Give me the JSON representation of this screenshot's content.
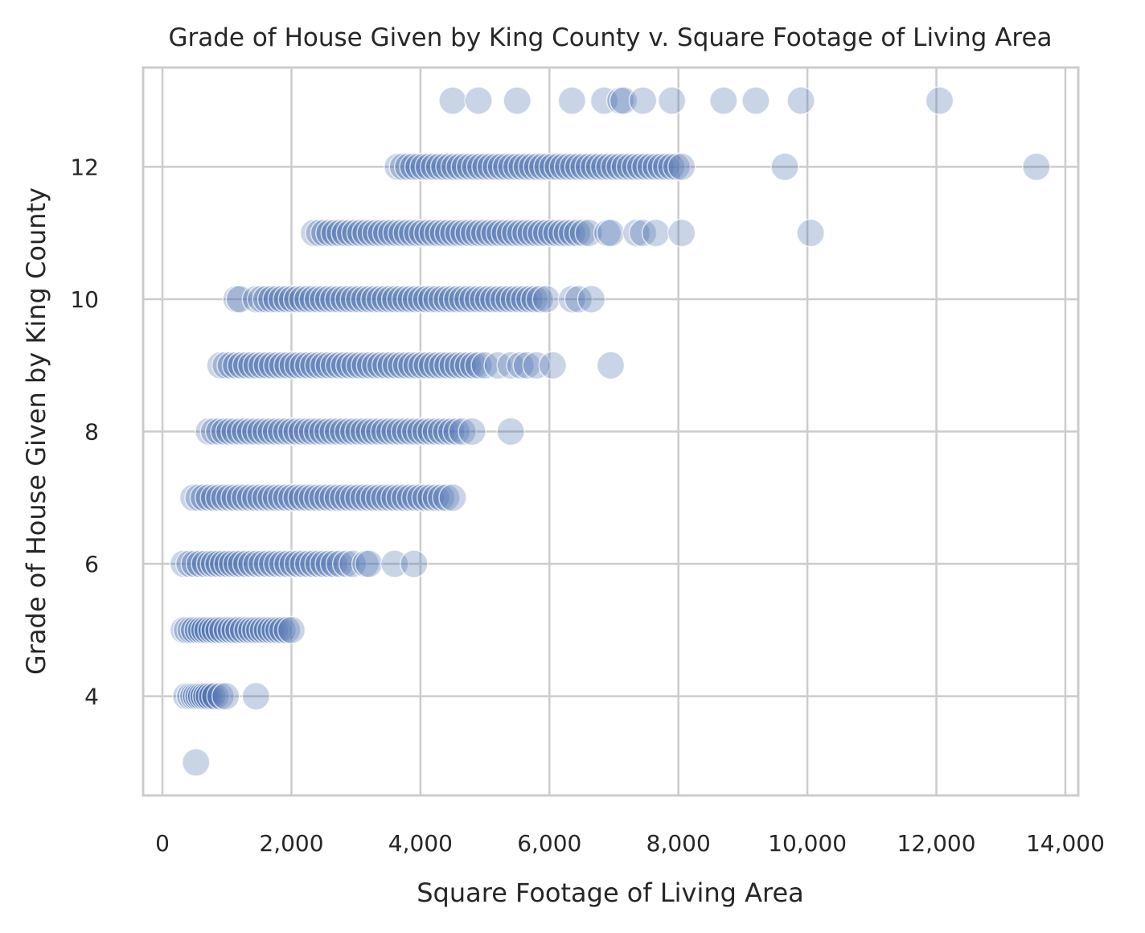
{
  "chart_data": {
    "type": "scatter",
    "title": "Grade of House Given by King County v. Square Footage of Living Area",
    "xlabel": "Square Footage of Living Area",
    "ylabel": "Grade of House Given by King County",
    "xlim": [
      -300,
      14200
    ],
    "ylim": [
      2.5,
      13.5
    ],
    "xticks": [
      0,
      2000,
      4000,
      6000,
      8000,
      10000,
      12000,
      14000
    ],
    "xtick_labels": [
      "0",
      "2,000",
      "4,000",
      "6,000",
      "8,000",
      "10,000",
      "12,000",
      "14,000"
    ],
    "yticks": [
      4,
      6,
      8,
      10,
      12
    ],
    "ytick_labels": [
      "4",
      "6",
      "8",
      "10",
      "12"
    ],
    "grid": true,
    "legend": "none",
    "marker_color": "#4c72b0",
    "marker_alpha": 0.3,
    "points": [
      {
        "grade": 3,
        "sqft": [
          520
        ]
      },
      {
        "grade": 4,
        "sqft": [
          370,
          430,
          480,
          520,
          560,
          600,
          640,
          680,
          720,
          770,
          820,
          900,
          980,
          1450
        ]
      },
      {
        "grade": 5,
        "sqft": [
          330,
          380,
          440,
          490,
          550,
          600,
          650,
          700,
          760,
          810,
          870,
          930,
          1000,
          1060,
          1120,
          1180,
          1250,
          1320,
          1380,
          1440,
          1500,
          1560,
          1620,
          1680,
          1740,
          1800,
          1860,
          1930,
          2000
        ]
      },
      {
        "grade": 6,
        "sqft": [
          330,
          420,
          500,
          580,
          660,
          740,
          800,
          870,
          940,
          1010,
          1080,
          1150,
          1220,
          1300,
          1380,
          1460,
          1540,
          1620,
          1700,
          1780,
          1860,
          1940,
          2020,
          2100,
          2180,
          2260,
          2340,
          2420,
          2500,
          2580,
          2660,
          2750,
          2850,
          2950,
          3150,
          3200,
          3600,
          3900
        ]
      },
      {
        "grade": 7,
        "sqft": [
          480,
          560,
          640,
          720,
          800,
          880,
          960,
          1040,
          1120,
          1200,
          1280,
          1360,
          1440,
          1520,
          1600,
          1680,
          1760,
          1840,
          1920,
          2000,
          2080,
          2160,
          2240,
          2320,
          2400,
          2480,
          2560,
          2640,
          2720,
          2800,
          2880,
          2960,
          3040,
          3120,
          3200,
          3280,
          3360,
          3440,
          3520,
          3600,
          3680,
          3760,
          3840,
          3920,
          4000,
          4080,
          4160,
          4240,
          4320,
          4400,
          4500
        ]
      },
      {
        "grade": 8,
        "sqft": [
          720,
          800,
          880,
          960,
          1040,
          1120,
          1200,
          1280,
          1360,
          1440,
          1520,
          1600,
          1680,
          1760,
          1840,
          1920,
          2000,
          2080,
          2160,
          2240,
          2320,
          2400,
          2480,
          2560,
          2640,
          2720,
          2800,
          2880,
          2960,
          3040,
          3120,
          3200,
          3280,
          3360,
          3440,
          3520,
          3600,
          3680,
          3760,
          3840,
          3920,
          4000,
          4080,
          4160,
          4240,
          4320,
          4400,
          4480,
          4560,
          4650,
          4800,
          5400
        ]
      },
      {
        "grade": 9,
        "sqft": [
          900,
          980,
          1060,
          1140,
          1220,
          1300,
          1380,
          1460,
          1540,
          1620,
          1700,
          1780,
          1860,
          1940,
          2020,
          2100,
          2180,
          2260,
          2340,
          2420,
          2500,
          2580,
          2660,
          2740,
          2820,
          2900,
          2980,
          3060,
          3140,
          3220,
          3300,
          3380,
          3460,
          3540,
          3620,
          3700,
          3780,
          3860,
          3940,
          4020,
          4100,
          4180,
          4260,
          4340,
          4420,
          4500,
          4580,
          4660,
          4740,
          4820,
          4900,
          5000,
          5200,
          5400,
          5550,
          5650,
          5800,
          6050,
          6950
        ]
      },
      {
        "grade": 10,
        "sqft": [
          1150,
          1200,
          1450,
          1530,
          1610,
          1690,
          1770,
          1850,
          1930,
          2010,
          2090,
          2170,
          2250,
          2330,
          2410,
          2490,
          2570,
          2650,
          2730,
          2810,
          2890,
          2970,
          3050,
          3130,
          3210,
          3290,
          3370,
          3450,
          3530,
          3610,
          3690,
          3770,
          3850,
          3930,
          4010,
          4090,
          4170,
          4250,
          4330,
          4410,
          4490,
          4570,
          4650,
          4730,
          4810,
          4890,
          4970,
          5050,
          5130,
          5210,
          5290,
          5370,
          5450,
          5530,
          5610,
          5690,
          5770,
          5850,
          5950,
          6350,
          6450,
          6650
        ]
      },
      {
        "grade": 11,
        "sqft": [
          2350,
          2430,
          2510,
          2590,
          2670,
          2750,
          2830,
          2910,
          2990,
          3070,
          3150,
          3230,
          3310,
          3390,
          3470,
          3550,
          3630,
          3710,
          3790,
          3870,
          3950,
          4030,
          4110,
          4190,
          4270,
          4350,
          4430,
          4510,
          4590,
          4670,
          4750,
          4830,
          4910,
          4990,
          5070,
          5150,
          5230,
          5310,
          5390,
          5470,
          5550,
          5630,
          5710,
          5790,
          5870,
          5950,
          6030,
          6110,
          6190,
          6270,
          6350,
          6430,
          6520,
          6610,
          6900,
          6950,
          7350,
          7450,
          7650,
          8050,
          10050
        ]
      },
      {
        "grade": 12,
        "sqft": [
          3650,
          3730,
          3810,
          3890,
          3970,
          4050,
          4130,
          4210,
          4290,
          4370,
          4450,
          4530,
          4610,
          4690,
          4770,
          4850,
          4930,
          5010,
          5090,
          5170,
          5250,
          5330,
          5410,
          5490,
          5570,
          5650,
          5730,
          5810,
          5890,
          5970,
          6050,
          6130,
          6210,
          6290,
          6370,
          6450,
          6530,
          6610,
          6690,
          6770,
          6850,
          6930,
          7010,
          7090,
          7170,
          7250,
          7330,
          7410,
          7490,
          7570,
          7650,
          7730,
          7810,
          7890,
          7970,
          8050,
          9650,
          13550
        ]
      },
      {
        "grade": 13,
        "sqft": [
          4500,
          4900,
          5500,
          6350,
          6850,
          7100,
          7150,
          7450,
          7900,
          8700,
          9200,
          9900,
          12050
        ]
      }
    ]
  }
}
